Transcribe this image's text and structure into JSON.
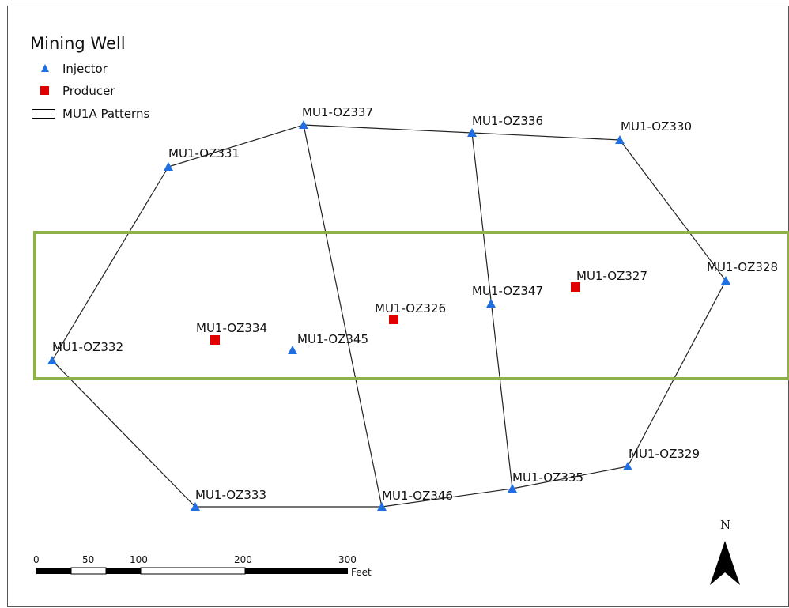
{
  "legend": {
    "title": "Mining Well",
    "items": [
      {
        "label": "Injector",
        "symbol": "triangle",
        "color": "#1f6fe0"
      },
      {
        "label": "Producer",
        "symbol": "square",
        "color": "#e00000"
      },
      {
        "label": "MU1A Patterns",
        "symbol": "rectangle-outline",
        "color": "#000000"
      }
    ]
  },
  "wells": [
    {
      "name": "MU1-OZ337",
      "type": "Injector"
    },
    {
      "name": "MU1-OZ336",
      "type": "Injector"
    },
    {
      "name": "MU1-OZ330",
      "type": "Injector"
    },
    {
      "name": "MU1-OZ331",
      "type": "Injector"
    },
    {
      "name": "MU1-OZ328",
      "type": "Injector"
    },
    {
      "name": "MU1-OZ327",
      "type": "Producer"
    },
    {
      "name": "MU1-OZ347",
      "type": "Injector"
    },
    {
      "name": "MU1-OZ326",
      "type": "Producer"
    },
    {
      "name": "MU1-OZ334",
      "type": "Producer"
    },
    {
      "name": "MU1-OZ345",
      "type": "Injector"
    },
    {
      "name": "MU1-OZ332",
      "type": "Injector"
    },
    {
      "name": "MU1-OZ329",
      "type": "Injector"
    },
    {
      "name": "MU1-OZ335",
      "type": "Injector"
    },
    {
      "name": "MU1-OZ346",
      "type": "Injector"
    },
    {
      "name": "MU1-OZ333",
      "type": "Injector"
    }
  ],
  "highlight_box_color": "#8fb14a",
  "scale_bar": {
    "ticks": [
      "0",
      "50",
      "100",
      "200",
      "300"
    ],
    "unit": "Feet"
  },
  "north_arrow": {
    "label": "N"
  }
}
